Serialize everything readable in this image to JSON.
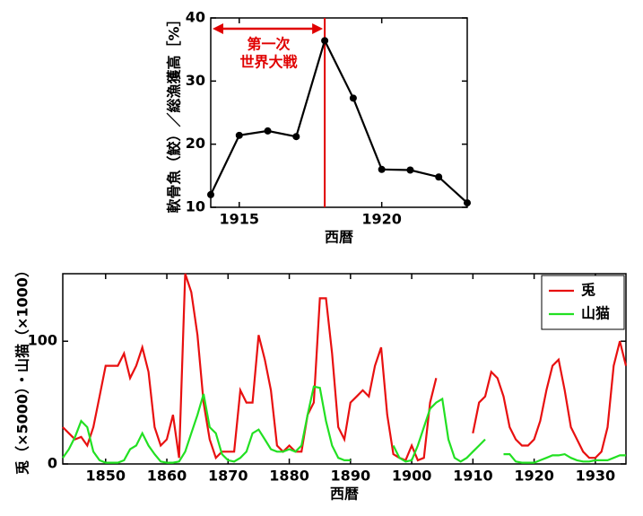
{
  "chart_data": [
    {
      "type": "line",
      "ylabel": "軟骨魚（鮫）／総漁獲高［%］",
      "xlabel": "西暦",
      "annotation": [
        "第一次",
        "世界大戦"
      ],
      "vline": 1918,
      "vline_color": "#e00000",
      "x": [
        1914,
        1915,
        1916,
        1917,
        1918,
        1919,
        1920,
        1921,
        1922,
        1923
      ],
      "series": [
        {
          "name": null,
          "color": "#000000",
          "values": [
            12,
            21.4,
            22.1,
            21.2,
            36.4,
            27.3,
            16,
            15.9,
            14.8,
            10.7
          ]
        }
      ],
      "markers": true,
      "xlim": [
        1914,
        1923
      ],
      "xticks": [
        1915,
        1920
      ],
      "ylim": [
        10,
        40
      ],
      "yticks": [
        10,
        20,
        30,
        40
      ]
    },
    {
      "type": "line",
      "ylabel": "兎（×5000）・山猫（×1000）",
      "xlabel": "西暦",
      "legend": "upper right",
      "markers": false,
      "x": [
        1843,
        1844,
        1845,
        1846,
        1847,
        1848,
        1849,
        1850,
        1851,
        1852,
        1853,
        1854,
        1855,
        1856,
        1857,
        1858,
        1859,
        1860,
        1861,
        1862,
        1863,
        1864,
        1865,
        1866,
        1867,
        1868,
        1869,
        1870,
        1871,
        1872,
        1873,
        1874,
        1875,
        1876,
        1877,
        1878,
        1879,
        1880,
        1881,
        1882,
        1883,
        1884,
        1885,
        1886,
        1887,
        1888,
        1889,
        1890,
        1891,
        1892,
        1893,
        1894,
        1895,
        1896,
        1897,
        1898,
        1899,
        1900,
        1901,
        1902,
        1903,
        1904,
        1905,
        1906,
        1907,
        1908,
        1909,
        1910,
        1911,
        1912,
        1913,
        1914,
        1915,
        1916,
        1917,
        1918,
        1919,
        1920,
        1921,
        1922,
        1923,
        1924,
        1925,
        1926,
        1927,
        1928,
        1929,
        1930,
        1931,
        1932,
        1933,
        1934,
        1935
      ],
      "series": [
        {
          "name": "兎",
          "color": "#e81010",
          "values": [
            30,
            25,
            20,
            22,
            15,
            30,
            55,
            80,
            80,
            80,
            90,
            70,
            80,
            95,
            75,
            30,
            15,
            20,
            40,
            5,
            155,
            140,
            105,
            50,
            20,
            5,
            10,
            10,
            10,
            60,
            50,
            50,
            105,
            85,
            60,
            15,
            10,
            15,
            10,
            10,
            40,
            50,
            135,
            135,
            90,
            30,
            20,
            50,
            55,
            60,
            55,
            80,
            95,
            40,
            8,
            5,
            3,
            15,
            3,
            5,
            50,
            70,
            null,
            null,
            null,
            null,
            null,
            25,
            50,
            55,
            75,
            70,
            55,
            30,
            20,
            15,
            15,
            20,
            35,
            60,
            80,
            85,
            60,
            30,
            20,
            10,
            5,
            5,
            10,
            30,
            80,
            100,
            80
          ]
        },
        {
          "name": "山猫",
          "color": "#22e022",
          "values": [
            5,
            12,
            22,
            35,
            30,
            10,
            3,
            1,
            1,
            1,
            3,
            12,
            15,
            25,
            15,
            8,
            2,
            1,
            1,
            2,
            10,
            25,
            40,
            57,
            30,
            25,
            8,
            3,
            2,
            5,
            10,
            25,
            28,
            20,
            12,
            10,
            10,
            12,
            10,
            15,
            40,
            63,
            62,
            35,
            15,
            5,
            3,
            3,
            null,
            null,
            null,
            null,
            null,
            null,
            15,
            5,
            2,
            3,
            15,
            30,
            45,
            50,
            53,
            20,
            5,
            2,
            5,
            10,
            15,
            20,
            null,
            null,
            8,
            8,
            2,
            1,
            1,
            1,
            3,
            5,
            7,
            7,
            8,
            5,
            3,
            2,
            2,
            3,
            3,
            3,
            5,
            7,
            7
          ]
        }
      ],
      "xlim": [
        1843,
        1935
      ],
      "xticks": [
        1850,
        1860,
        1870,
        1880,
        1890,
        1900,
        1910,
        1920,
        1930
      ],
      "ylim": [
        0,
        155
      ],
      "yticks": [
        0,
        100
      ]
    }
  ]
}
